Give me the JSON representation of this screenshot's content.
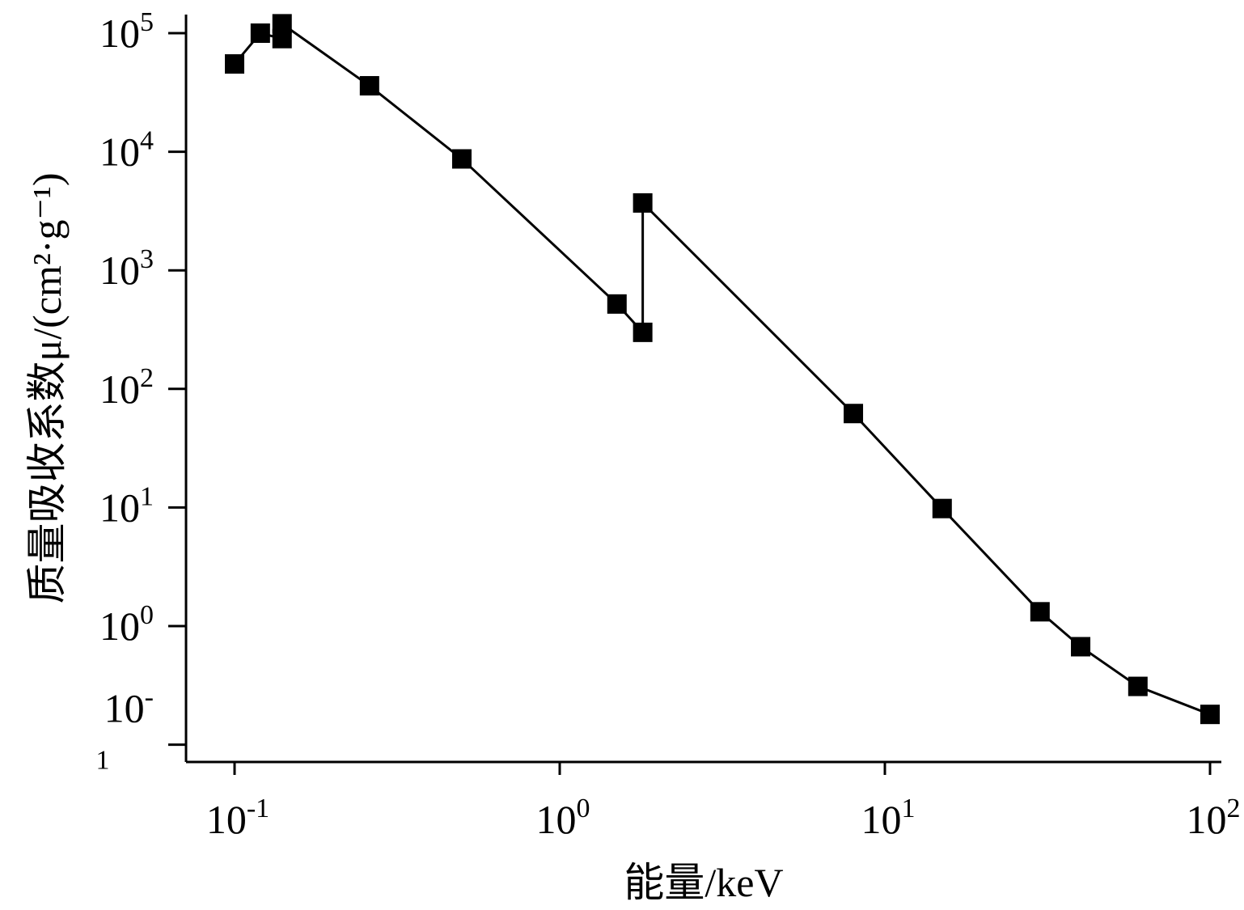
{
  "chart_data": {
    "type": "line",
    "xlabel": "能量/keV",
    "ylabel": "质量吸收系数μ/(cm²·g⁻¹)",
    "x_scale": "log",
    "y_scale": "log",
    "xlim": [
      0.07,
      130
    ],
    "ylim": [
      0.05,
      170000
    ],
    "grid": false,
    "x_ticks": [
      {
        "value": 0.1,
        "base": "10",
        "exp": "-1"
      },
      {
        "value": 1,
        "base": "10",
        "exp": "0"
      },
      {
        "value": 10,
        "base": "10",
        "exp": "1"
      },
      {
        "value": 100,
        "base": "10",
        "exp": "2"
      }
    ],
    "y_ticks": [
      {
        "value": 100000,
        "base": "10",
        "exp": "5"
      },
      {
        "value": 10000,
        "base": "10",
        "exp": "4"
      },
      {
        "value": 1000,
        "base": "10",
        "exp": "3"
      },
      {
        "value": 100,
        "base": "10",
        "exp": "2"
      },
      {
        "value": 10,
        "base": "10",
        "exp": "1"
      },
      {
        "value": 1,
        "base": "10",
        "exp": "0"
      },
      {
        "value": 0.1,
        "base": "10",
        "exp": "-",
        "below": "1"
      }
    ],
    "series": [
      {
        "x": [
          0.1,
          0.12,
          0.14,
          0.14,
          0.26,
          0.5,
          1.5,
          1.8,
          1.8,
          8,
          15,
          30,
          40,
          60,
          100
        ],
        "y": [
          55000,
          100000,
          90000,
          120000,
          36000,
          8700,
          520,
          300,
          3700,
          62,
          9.8,
          1.32,
          0.67,
          0.31,
          0.18
        ]
      }
    ]
  }
}
